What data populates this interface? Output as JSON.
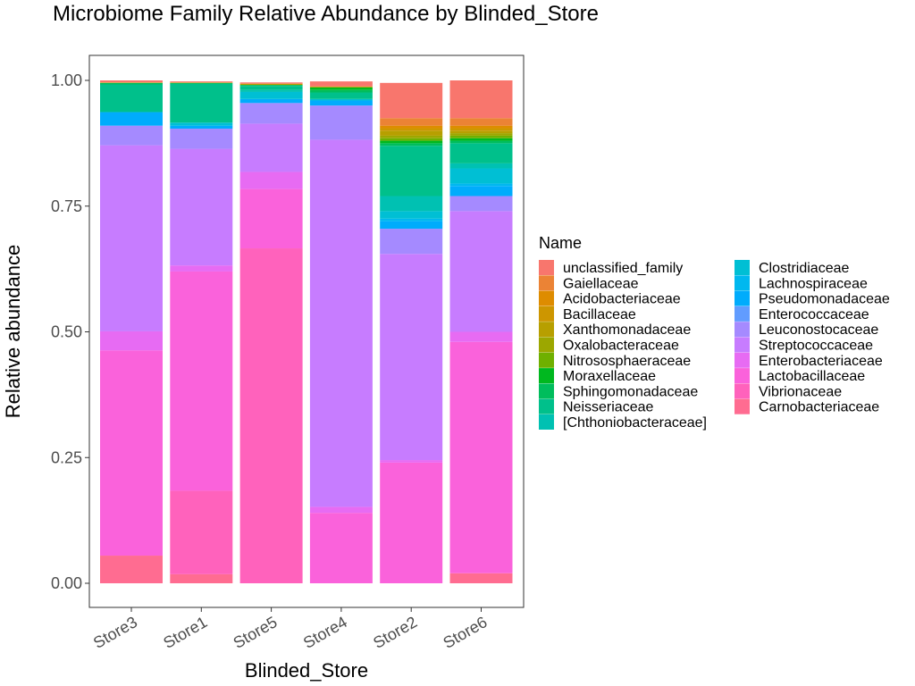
{
  "chart_data": {
    "type": "bar",
    "stacked": true,
    "title": "Microbiome Family Relative Abundance by Blinded_Store",
    "xlabel": "Blinded_Store",
    "ylabel": "Relative abundance",
    "ylim": [
      0,
      1
    ],
    "yticks": [
      "0.00",
      "0.25",
      "0.50",
      "0.75",
      "1.00"
    ],
    "grid": false,
    "legend_title": "Name",
    "legend_position": "right",
    "categories": [
      "Store3",
      "Store1",
      "Store5",
      "Store4",
      "Store2",
      "Store6"
    ],
    "series": [
      {
        "name": "unclassified_family",
        "color": "#F8766D",
        "values": [
          0.004,
          0.002,
          0.002,
          0.01,
          0.07,
          0.075
        ]
      },
      {
        "name": "Gaiellaceae",
        "color": "#EB8335",
        "values": [
          0.0,
          0.0,
          0.001,
          0.0,
          0.015,
          0.015
        ]
      },
      {
        "name": "Acidobacteriaceae",
        "color": "#DE8C00",
        "values": [
          0.0,
          0.0,
          0.0,
          0.0,
          0.005,
          0.005
        ]
      },
      {
        "name": "Bacillaceae",
        "color": "#CD9600",
        "values": [
          0.0,
          0.0,
          0.001,
          0.0,
          0.005,
          0.005
        ]
      },
      {
        "name": "Xanthomonadaceae",
        "color": "#B79F00",
        "values": [
          0.001,
          0.001,
          0.001,
          0.002,
          0.01,
          0.005
        ]
      },
      {
        "name": "Oxalobacteraceae",
        "color": "#9CA700",
        "values": [
          0.0,
          0.0,
          0.0,
          0.0,
          0.005,
          0.005
        ]
      },
      {
        "name": "Nitrososphaeraceae",
        "color": "#6FB000",
        "values": [
          0.0,
          0.0,
          0.0,
          0.0,
          0.005,
          0.005
        ]
      },
      {
        "name": "Moraxellaceae",
        "color": "#00B81F",
        "values": [
          0.0,
          0.0,
          0.0,
          0.005,
          0.005,
          0.005
        ]
      },
      {
        "name": "Sphingomonadaceae",
        "color": "#00BD5C",
        "values": [
          0.003,
          0.002,
          0.002,
          0.005,
          0.005,
          0.005
        ]
      },
      {
        "name": "Neisseriaceae",
        "color": "#00C08B",
        "values": [
          0.055,
          0.077,
          0.008,
          0.013,
          0.1,
          0.04
        ]
      },
      {
        "name": "[Chthoniobacteraceae]",
        "color": "#00C1B2",
        "values": [
          0.0,
          0.0,
          0.004,
          0.0,
          0.03,
          0.01
        ]
      },
      {
        "name": "Clostridiaceae",
        "color": "#00BFD4",
        "values": [
          0.0,
          0.006,
          0.014,
          0.003,
          0.015,
          0.03
        ]
      },
      {
        "name": "Lachnospiraceae",
        "color": "#00B8EF",
        "values": [
          0.0,
          0.0,
          0.0,
          0.0,
          0.005,
          0.005
        ]
      },
      {
        "name": "Pseudomonadaceae",
        "color": "#00ACFC",
        "values": [
          0.027,
          0.006,
          0.008,
          0.01,
          0.015,
          0.02
        ]
      },
      {
        "name": "Enterococcaceae",
        "color": "#619CFF",
        "values": [
          0.0,
          0.0,
          0.0,
          0.0,
          0.0,
          0.0
        ]
      },
      {
        "name": "Leuconostocaceae",
        "color": "#A58AFF",
        "values": [
          0.039,
          0.04,
          0.041,
          0.068,
          0.05,
          0.03
        ]
      },
      {
        "name": "Streptococcaceae",
        "color": "#C77CFF",
        "values": [
          0.37,
          0.232,
          0.096,
          0.73,
          0.41,
          0.24
        ]
      },
      {
        "name": "Enterobacteriaceae",
        "color": "#E76BF3",
        "values": [
          0.038,
          0.012,
          0.034,
          0.012,
          0.005,
          0.02
        ]
      },
      {
        "name": "Lactobacillaceae",
        "color": "#FA62DB",
        "values": [
          0.408,
          0.436,
          0.118,
          0.14,
          0.24,
          0.46
        ]
      },
      {
        "name": "Vibrionaceae",
        "color": "#FF62BC",
        "values": [
          0.0,
          0.166,
          0.666,
          0.0,
          0.0,
          0.0
        ]
      },
      {
        "name": "Carnobacteriaceae",
        "color": "#FF6C91",
        "values": [
          0.055,
          0.018,
          0.0,
          0.0,
          0.0,
          0.02
        ]
      }
    ]
  }
}
